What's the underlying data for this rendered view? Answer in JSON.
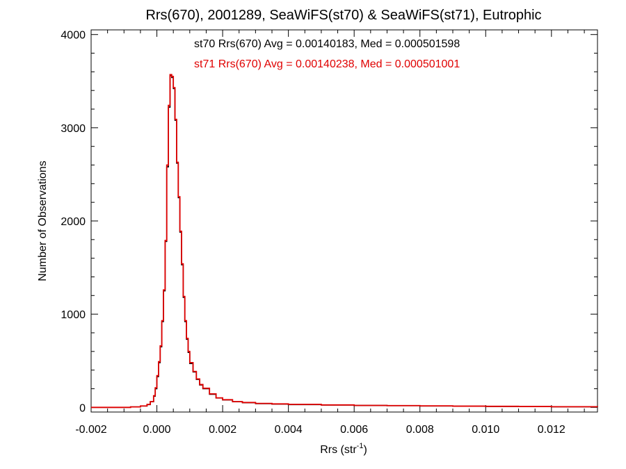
{
  "chart_data": {
    "type": "line",
    "title": "Rrs(670), 2001289, SeaWiFS(st70) & SeaWiFS(st71), Eutrophic",
    "xlabel": {
      "base": "Rrs (str",
      "sup": "-1",
      "tail": ")"
    },
    "ylabel": "Number of Observations",
    "xlim": [
      -0.002,
      0.0134
    ],
    "ylim": [
      -50,
      4050
    ],
    "x_ticks": [
      -0.002,
      0.0,
      0.002,
      0.004,
      0.006,
      0.008,
      0.01,
      0.012
    ],
    "x_tick_labels": [
      "-0.002",
      "0.000",
      "0.002",
      "0.004",
      "0.006",
      "0.008",
      "0.010",
      "0.012"
    ],
    "y_ticks": [
      0,
      1000,
      2000,
      3000,
      4000
    ],
    "y_tick_labels": [
      "0",
      "1000",
      "2000",
      "3000",
      "4000"
    ],
    "annotations": [
      {
        "text": "st70 Rrs(670) Avg = 0.00140183, Med = 0.000501598",
        "color": "#000000"
      },
      {
        "text": "st71 Rrs(670) Avg = 0.00140238, Med = 0.000501001",
        "color": "#e00000"
      }
    ],
    "series": [
      {
        "color": "#000000",
        "x": [
          -0.002,
          -0.0008,
          -0.0005,
          -0.0003,
          -0.0002,
          -0.0001,
          -5e-05,
          0.0,
          5e-05,
          0.0001,
          0.00015,
          0.0002,
          0.00025,
          0.0003,
          0.00035,
          0.0004,
          0.00045,
          0.0005,
          0.00055,
          0.0006,
          0.00065,
          0.0007,
          0.00075,
          0.0008,
          0.00085,
          0.0009,
          0.00095,
          0.001,
          0.0011,
          0.0012,
          0.0013,
          0.0014,
          0.0016,
          0.0018,
          0.002,
          0.0023,
          0.0026,
          0.003,
          0.0035,
          0.004,
          0.005,
          0.006,
          0.007,
          0.008,
          0.009,
          0.01,
          0.011,
          0.012,
          0.0134
        ],
        "values": [
          0,
          5,
          15,
          30,
          60,
          120,
          200,
          330,
          480,
          650,
          920,
          1250,
          1780,
          2580,
          3220,
          3560,
          3540,
          3420,
          3080,
          2620,
          2250,
          1880,
          1530,
          1180,
          920,
          730,
          590,
          470,
          380,
          300,
          240,
          200,
          140,
          100,
          80,
          60,
          50,
          40,
          35,
          30,
          25,
          20,
          18,
          15,
          12,
          10,
          8,
          6,
          4
        ]
      },
      {
        "color": "#e00000",
        "x": [
          -0.002,
          -0.0008,
          -0.0005,
          -0.0003,
          -0.0002,
          -0.0001,
          -5e-05,
          0.0,
          5e-05,
          0.0001,
          0.00015,
          0.0002,
          0.00025,
          0.0003,
          0.00035,
          0.0004,
          0.00045,
          0.0005,
          0.00055,
          0.0006,
          0.00065,
          0.0007,
          0.00075,
          0.0008,
          0.00085,
          0.0009,
          0.00095,
          0.001,
          0.0011,
          0.0012,
          0.0013,
          0.0014,
          0.0016,
          0.0018,
          0.002,
          0.0023,
          0.0026,
          0.003,
          0.0035,
          0.004,
          0.005,
          0.006,
          0.007,
          0.008,
          0.009,
          0.01,
          0.011,
          0.012,
          0.0134
        ],
        "values": [
          0,
          5,
          15,
          32,
          62,
          125,
          210,
          340,
          490,
          660,
          930,
          1260,
          1790,
          2600,
          3240,
          3570,
          3550,
          3430,
          3090,
          2630,
          2260,
          1890,
          1540,
          1190,
          930,
          740,
          600,
          480,
          385,
          305,
          245,
          205,
          145,
          102,
          82,
          62,
          52,
          42,
          37,
          32,
          26,
          21,
          19,
          16,
          13,
          11,
          9,
          7,
          5
        ]
      }
    ]
  }
}
